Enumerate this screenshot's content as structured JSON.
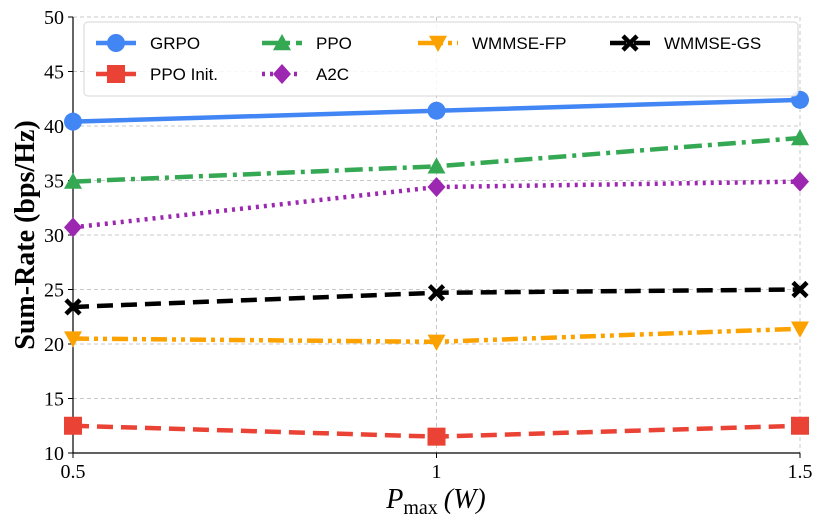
{
  "chart_data": {
    "type": "line",
    "title": "",
    "x": [
      0.5,
      1,
      1.5
    ],
    "x_tick_labels": [
      "0.5",
      "1",
      "1.5"
    ],
    "xlim": [
      0.5,
      1.5
    ],
    "ylim": [
      10,
      50
    ],
    "y_ticks": [
      10,
      15,
      20,
      25,
      30,
      35,
      40,
      45,
      50
    ],
    "xlabel": {
      "main": "P",
      "sub": "max",
      "unit": "(W)"
    },
    "ylabel": "Sum-Rate (bps/Hz)",
    "grid": true,
    "legend_position": "top",
    "series": [
      {
        "name": "GRPO",
        "values": [
          40.4,
          41.4,
          42.4
        ],
        "color": "#4285F4",
        "marker": "circle",
        "dash": "solid"
      },
      {
        "name": "PPO Init.",
        "values": [
          12.5,
          11.5,
          12.5
        ],
        "color": "#EA4335",
        "marker": "square",
        "dash": "dashed"
      },
      {
        "name": "PPO",
        "values": [
          34.9,
          36.3,
          38.9
        ],
        "color": "#34A853",
        "marker": "triangle-up",
        "dash": "dashdot"
      },
      {
        "name": "A2C",
        "values": [
          30.7,
          34.4,
          34.9
        ],
        "color": "#9C27B0",
        "marker": "diamond",
        "dash": "dotted"
      },
      {
        "name": "WMMSE-FP",
        "values": [
          20.5,
          20.2,
          21.4
        ],
        "color": "#FBA200",
        "marker": "triangle-down",
        "dash": "dashdotdot"
      },
      {
        "name": "WMMSE-GS",
        "values": [
          23.4,
          24.7,
          25.0
        ],
        "color": "#000000",
        "marker": "x",
        "dash": "dashed"
      }
    ]
  }
}
